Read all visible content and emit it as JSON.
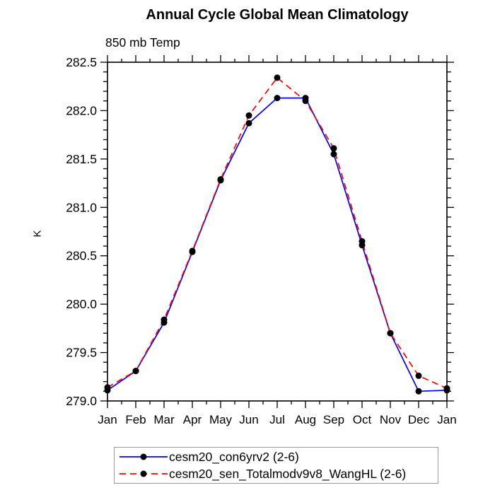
{
  "chart_data": {
    "type": "line",
    "title": "Annual Cycle Global Mean Climatology",
    "subtitle": "850 mb Temp",
    "ylabel": "K",
    "xlabel": "",
    "x_categories": [
      "Jan",
      "Feb",
      "Mar",
      "Apr",
      "May",
      "Jun",
      "Jul",
      "Aug",
      "Sep",
      "Oct",
      "Nov",
      "Dec",
      "Jan"
    ],
    "ylim": [
      279.0,
      282.5
    ],
    "ytick_interval": 0.5,
    "yminor_interval": 0.1,
    "ytick_labels": [
      "279.0",
      "279.5",
      "280.0",
      "280.5",
      "281.0",
      "281.5",
      "282.0",
      "282.5"
    ],
    "grid": false,
    "legend_position": "bottom-outside",
    "axis_color": "#000000",
    "marker_color": "#000000",
    "series": [
      {
        "name": "cesm20_con6yrv2 (2-6)",
        "color": "#0000ff",
        "line_style": "solid",
        "marker": "filled-circle",
        "values": [
          279.11,
          279.31,
          279.81,
          280.54,
          281.28,
          281.87,
          282.13,
          282.13,
          281.55,
          280.61,
          279.7,
          279.1,
          279.11
        ]
      },
      {
        "name": "cesm20_sen_Totalmodv9v8_WangHL (2-6)",
        "color": "#ff0000",
        "line_style": "dashed",
        "marker": "filled-circle",
        "values": [
          279.14,
          279.31,
          279.84,
          280.55,
          281.29,
          281.95,
          282.34,
          282.1,
          281.61,
          280.65,
          279.7,
          279.26,
          279.13
        ]
      }
    ]
  }
}
